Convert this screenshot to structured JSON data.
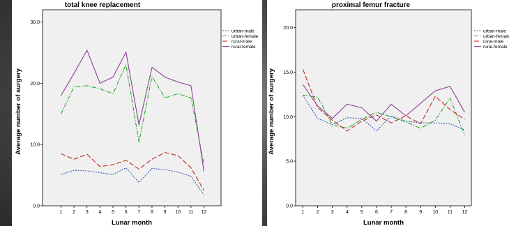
{
  "chart_data": [
    {
      "type": "line",
      "title": "total knee replacement",
      "xlabel": "Lunar month",
      "ylabel": "Average number of surgery",
      "x": [
        1,
        2,
        3,
        4,
        5,
        6,
        7,
        8,
        9,
        10,
        11,
        12
      ],
      "xticks": [
        "1",
        "2",
        "3",
        "4",
        "5",
        "6",
        "7",
        "8",
        "9",
        "10",
        "11",
        "12"
      ],
      "ylim": [
        0,
        32
      ],
      "yticks": [
        0,
        10,
        20,
        30
      ],
      "ytick_labels": [
        "0.0",
        "10.0",
        "20.0",
        "30.0"
      ],
      "grid": false,
      "legend_position": "top-right",
      "series": [
        {
          "name": "urban-male",
          "color": "#3a58b5",
          "dash": "2,1.6",
          "values": [
            5.1,
            5.8,
            5.7,
            5.4,
            5.1,
            6.2,
            3.8,
            6.1,
            5.9,
            5.5,
            4.8,
            1.8
          ]
        },
        {
          "name": "urban-female",
          "color": "#2aa52a",
          "dash": "6,2,1.5,2",
          "values": [
            15.0,
            19.4,
            19.6,
            19.1,
            18.3,
            23.0,
            10.4,
            21.1,
            17.6,
            18.3,
            17.6,
            6.8
          ]
        },
        {
          "name": "rural-male",
          "color": "#c2271f",
          "dash": "7,3",
          "values": [
            8.5,
            7.6,
            8.4,
            6.4,
            6.7,
            7.4,
            6.0,
            7.6,
            8.7,
            8.2,
            6.2,
            2.5
          ]
        },
        {
          "name": "rural-female",
          "color": "#8e3f98",
          "dash": "",
          "values": [
            18.0,
            21.6,
            25.4,
            20.0,
            21.0,
            25.1,
            13.2,
            22.6,
            21.0,
            20.2,
            19.6,
            5.6
          ]
        }
      ]
    },
    {
      "type": "line",
      "title": "proximal femur fracture",
      "xlabel": "Lunar month",
      "ylabel": "Average number of surgery",
      "x": [
        1,
        2,
        3,
        4,
        5,
        6,
        7,
        8,
        9,
        10,
        11,
        12
      ],
      "xticks": [
        "1",
        "2",
        "3",
        "4",
        "5",
        "6",
        "7",
        "8",
        "9",
        "10",
        "11",
        "12"
      ],
      "ylim": [
        0,
        22
      ],
      "yticks": [
        0,
        5,
        10,
        15,
        20
      ],
      "ytick_labels": [
        "0.0",
        "5.0",
        "10.0",
        "15.0",
        "20.0"
      ],
      "grid": false,
      "legend_position": "top-right",
      "series": [
        {
          "name": "urban-male",
          "color": "#3a58b5",
          "dash": "2,1.6",
          "values": [
            12.4,
            9.8,
            9.1,
            9.9,
            9.8,
            8.4,
            10.1,
            9.5,
            9.3,
            9.3,
            9.2,
            8.5
          ]
        },
        {
          "name": "urban-female",
          "color": "#2aa52a",
          "dash": "6,2,1.5,2",
          "values": [
            12.4,
            12.2,
            9.1,
            8.7,
            9.7,
            10.5,
            10.0,
            9.4,
            8.7,
            9.6,
            12.1,
            7.9
          ]
        },
        {
          "name": "rural-male",
          "color": "#c2271f",
          "dash": "7,3",
          "values": [
            15.3,
            11.0,
            9.6,
            8.4,
            9.5,
            10.2,
            9.3,
            10.1,
            9.2,
            12.3,
            10.8,
            9.7
          ]
        },
        {
          "name": "rural-female",
          "color": "#8e3f98",
          "dash": "",
          "values": [
            13.6,
            11.2,
            9.8,
            11.4,
            11.0,
            9.5,
            11.4,
            10.1,
            11.5,
            12.9,
            13.4,
            10.5
          ]
        }
      ]
    }
  ]
}
